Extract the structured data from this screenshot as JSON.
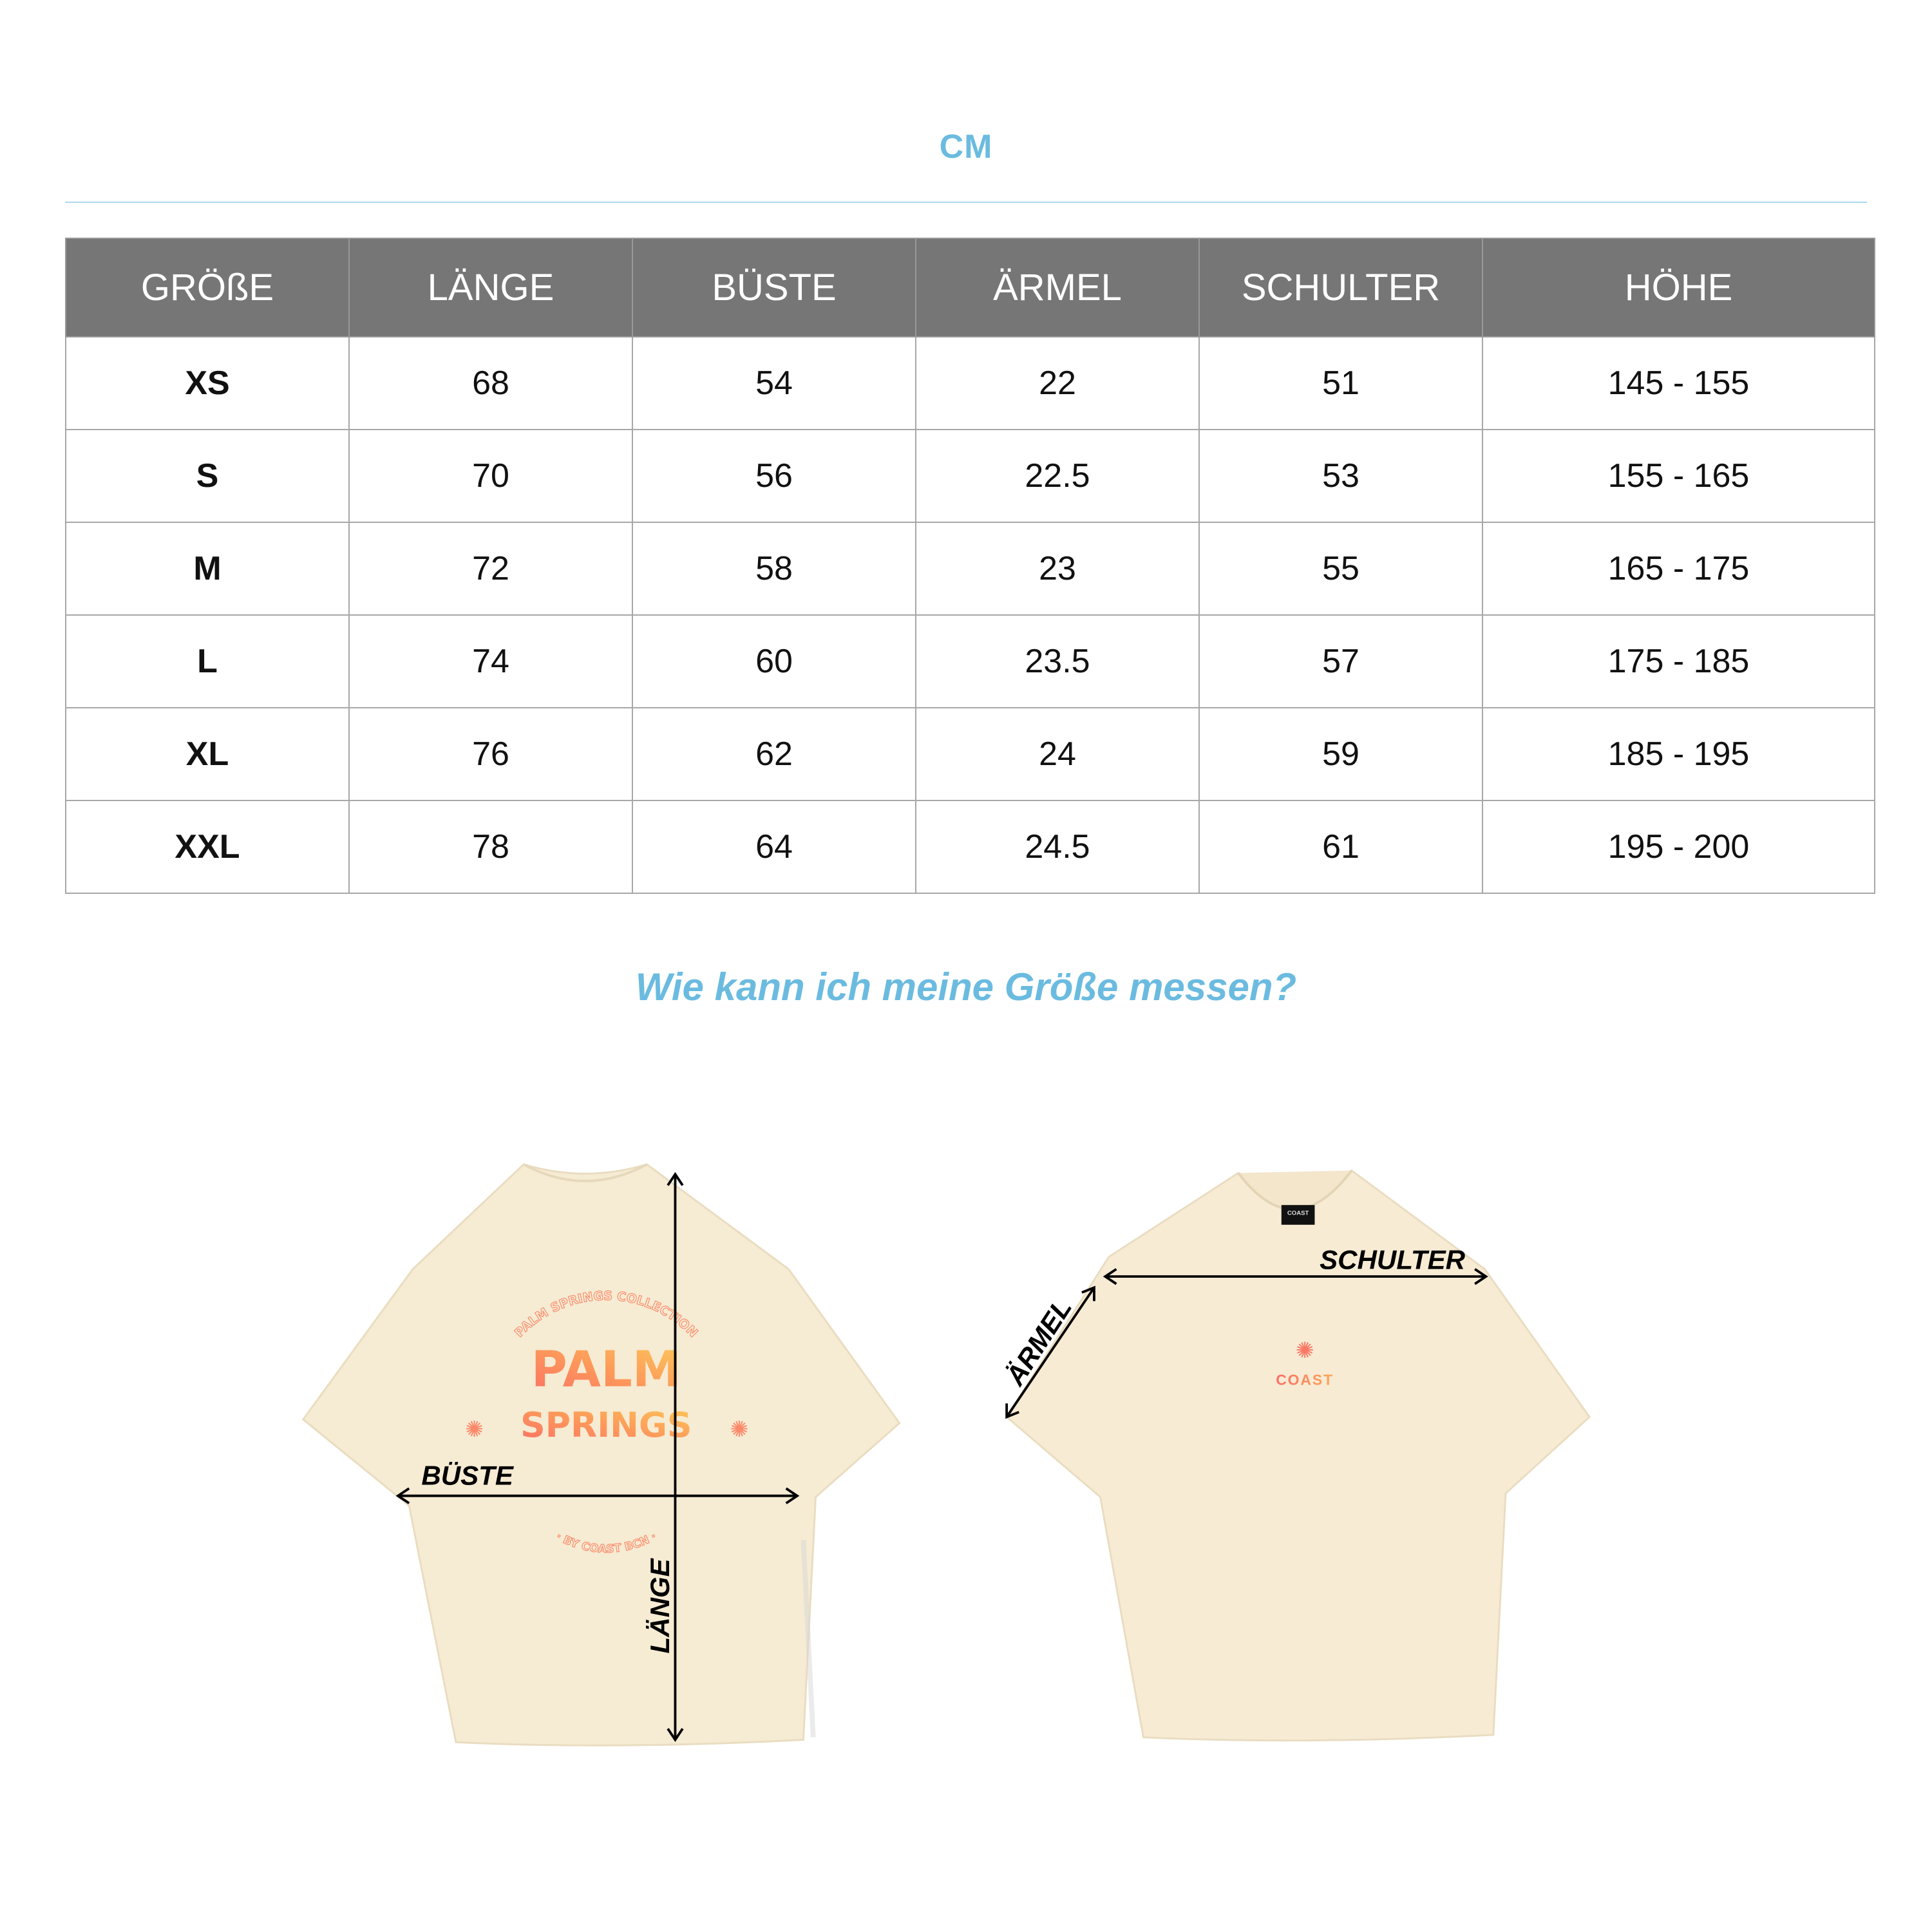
{
  "unit_label": "CM",
  "table": {
    "headers": [
      "GRÖßE",
      "LÄNGE",
      "BÜSTE",
      "ÄRMEL",
      "SCHULTER",
      "HÖHE"
    ],
    "rows": [
      [
        "XS",
        "68",
        "54",
        "22",
        "51",
        "145 - 155"
      ],
      [
        "S",
        "70",
        "56",
        "22.5",
        "53",
        "155 - 165"
      ],
      [
        "M",
        "72",
        "58",
        "23",
        "55",
        "165 - 175"
      ],
      [
        "L",
        "74",
        "60",
        "23.5",
        "57",
        "175 - 185"
      ],
      [
        "XL",
        "76",
        "62",
        "24",
        "59",
        "185 - 195"
      ],
      [
        "XXL",
        "78",
        "64",
        "24.5",
        "61",
        "195 - 200"
      ]
    ]
  },
  "question": "Wie kann ich meine Größe messen?",
  "diagram": {
    "back": {
      "bust_label": "BÜSTE",
      "length_label": "LÄNGE",
      "print_main_top": "PALM",
      "print_main_bottom": "SPRINGS",
      "print_ring_top": "PALM SPRINGS COLLECTION",
      "print_ring_bottom": "· BY COAST BCN ·"
    },
    "front": {
      "shoulder_label": "SCHULTER",
      "sleeve_label": "ÄRMEL",
      "logo_text": "COAST",
      "neck_label_text": "COAST"
    },
    "shirt_color": "#f6ebd3",
    "print_colors": [
      "#fdc95a",
      "#fd9a5a",
      "#fb6f66"
    ]
  },
  "colors": {
    "accent": "#6bbbe0",
    "header_bg": "#767676"
  }
}
